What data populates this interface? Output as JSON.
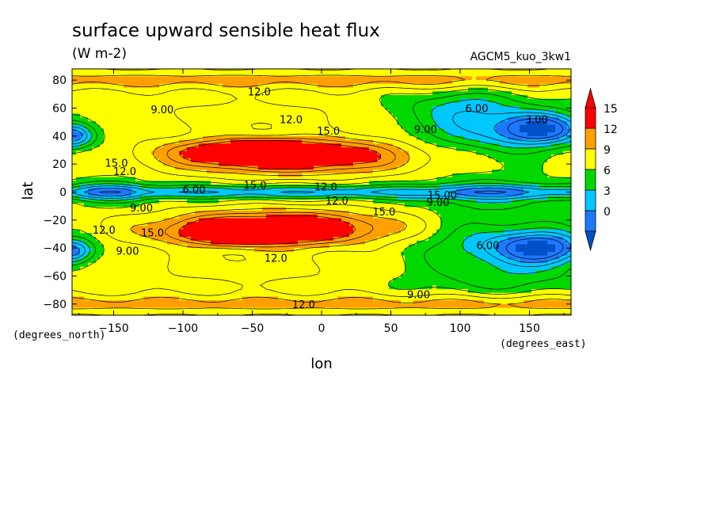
{
  "chart_data": {
    "type": "heatmap",
    "title": "surface upward sensible heat flux",
    "subtitle": "(W m-2)",
    "run_label": "AGCM5_kuo_3kw1",
    "xlabel": "lon",
    "ylabel": "lat",
    "x_units": "(degrees_east)",
    "y_units": "(degrees_north)",
    "xlim": [
      -180,
      180
    ],
    "ylim": [
      -88,
      88
    ],
    "x_ticks": [
      -150,
      -100,
      -50,
      0,
      50,
      100,
      150
    ],
    "y_ticks": [
      -80,
      -60,
      -40,
      -20,
      0,
      20,
      40,
      60,
      80
    ],
    "colorbar": {
      "levels": [
        0,
        3,
        6,
        9,
        12,
        15
      ],
      "colors": [
        "#1e78ff",
        "#00c8ff",
        "#00d800",
        "#ffff00",
        "#ffa000",
        "#ff0000"
      ],
      "extend": "both"
    },
    "contour_labels": [
      {
        "text": "12.0",
        "lon": -45,
        "lat": 72
      },
      {
        "text": "9.00",
        "lon": -115,
        "lat": 59
      },
      {
        "text": "12.0",
        "lon": -22,
        "lat": 52
      },
      {
        "text": "15.0",
        "lon": 5,
        "lat": 44
      },
      {
        "text": "6.00",
        "lon": 112,
        "lat": 60
      },
      {
        "text": "9.00",
        "lon": 75,
        "lat": 45
      },
      {
        "text": "3.00",
        "lon": 155,
        "lat": 52
      },
      {
        "text": "15.0",
        "lon": -148,
        "lat": 21
      },
      {
        "text": "12.0",
        "lon": -142,
        "lat": 15
      },
      {
        "text": "6.00",
        "lon": -92,
        "lat": 2
      },
      {
        "text": "15.0",
        "lon": -48,
        "lat": 5
      },
      {
        "text": "12.0",
        "lon": 3,
        "lat": 4
      },
      {
        "text": "12.0",
        "lon": 11,
        "lat": -6
      },
      {
        "text": "15.00",
        "lon": 87,
        "lat": -2
      },
      {
        "text": "9.00",
        "lon": 84,
        "lat": -7
      },
      {
        "text": "9.00",
        "lon": -130,
        "lat": -11
      },
      {
        "text": "15.0",
        "lon": 45,
        "lat": -14
      },
      {
        "text": "12.0",
        "lon": -157,
        "lat": -27
      },
      {
        "text": "15.0",
        "lon": -122,
        "lat": -29
      },
      {
        "text": "9.00",
        "lon": -140,
        "lat": -42
      },
      {
        "text": "6.00",
        "lon": 120,
        "lat": -38
      },
      {
        "text": "12.0",
        "lon": -33,
        "lat": -47
      },
      {
        "text": "9.00",
        "lon": 70,
        "lat": -73
      },
      {
        "text": "12.0",
        "lon": -13,
        "lat": -80
      }
    ]
  }
}
